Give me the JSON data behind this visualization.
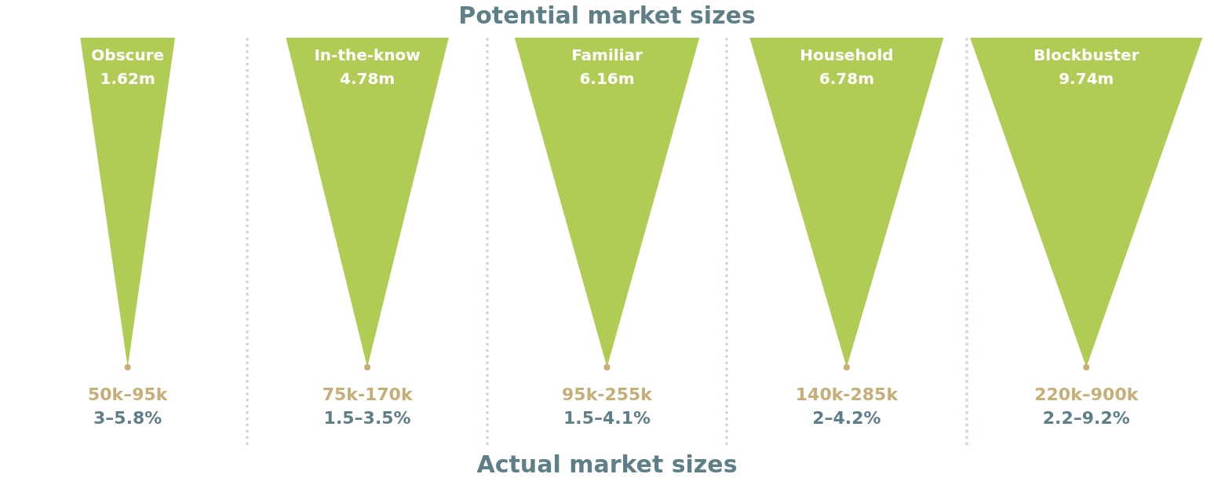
{
  "chart_data": {
    "type": "other",
    "title": "Potential market sizes",
    "xlabel": "Actual market sizes",
    "categories": [
      "Obscure",
      "In-the-know",
      "Familiar",
      "Household",
      "Blockbuster"
    ],
    "values": [
      1.62,
      4.78,
      6.16,
      6.78,
      9.74
    ],
    "value_labels": [
      "1.62m",
      "4.78m",
      "6.16m",
      "6.78m",
      "9.74m"
    ],
    "color": "#b0cc55",
    "annotations": [
      {
        "text": "50k–95k",
        "x": "Obscure"
      },
      {
        "text": "75k-170k",
        "x": "In-the-know"
      },
      {
        "text": "95k-255k",
        "x": "Familiar"
      },
      {
        "text": "140k-285k",
        "x": "Household"
      },
      {
        "text": "220k–900k",
        "x": "Blockbuster"
      },
      {
        "text": "3–5.8%",
        "x": "Obscure"
      },
      {
        "text": "1.5–3.5%",
        "x": "In-the-know"
      },
      {
        "text": "1.5–4.1%",
        "x": "Familiar"
      },
      {
        "text": "2–4.2%",
        "x": "Household"
      },
      {
        "text": "2.2–9.2%",
        "x": "Blockbuster"
      }
    ],
    "legend": false
  }
}
